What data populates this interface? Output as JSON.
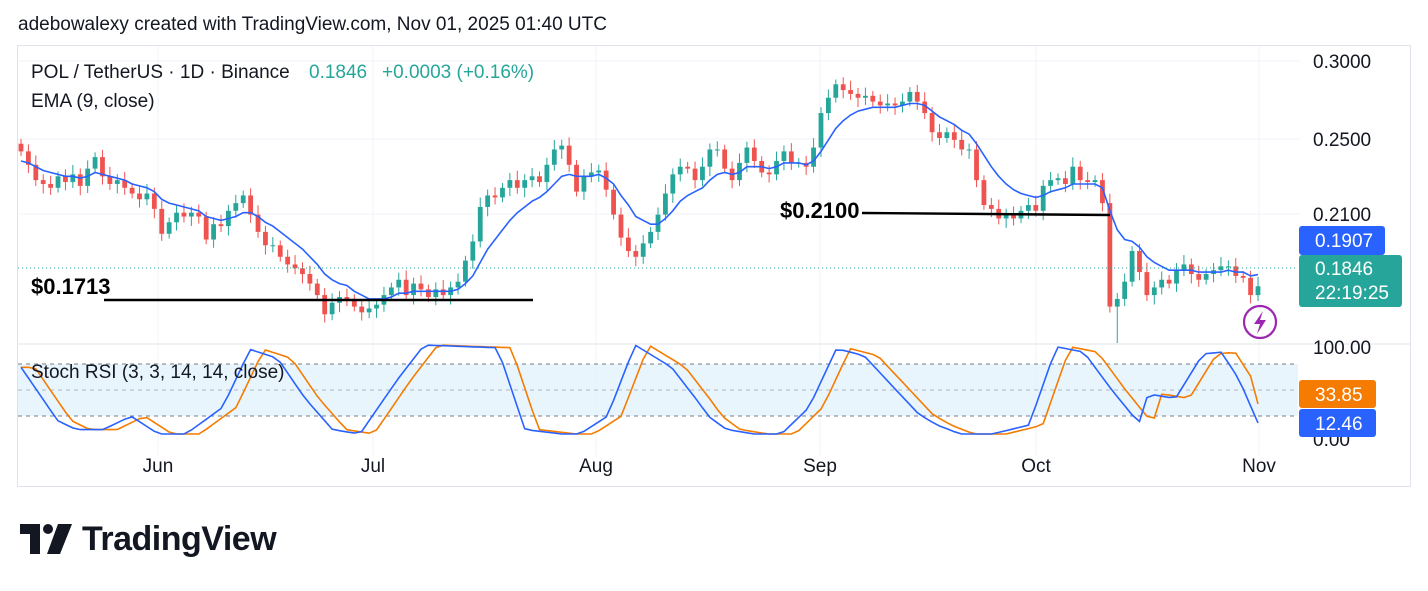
{
  "header": {
    "attribution": "adebowalexy created with TradingView.com, Nov 01, 2025 01:40 UTC"
  },
  "symbol": {
    "name": "POL / TetherUS · 1D · Binance",
    "price": "0.1846",
    "change": "+0.0003 (+0.16%)"
  },
  "indicators": {
    "ema": "EMA (9, close)",
    "stoch": "Stoch RSI (3, 3, 14, 14, close)"
  },
  "annotations": {
    "support": "$0.1713",
    "resistance": "$0.2100"
  },
  "price_axis": {
    "ticks": [
      "0.3000",
      "0.2500",
      "0.2100"
    ],
    "ema_value": "0.1907",
    "last_price": "0.1846",
    "countdown": "22:19:25"
  },
  "stoch_axis": {
    "top_label": "100.00",
    "bottom_label": "0.00",
    "k_value": "33.85",
    "d_value": "12.46"
  },
  "time_axis": [
    "Jun",
    "Jul",
    "Aug",
    "Sep",
    "Oct",
    "Nov"
  ],
  "brand": {
    "name": "TradingView"
  },
  "colors": {
    "up": "#26a69a",
    "down": "#ef5350",
    "ema": "#2962ff",
    "stoch_k": "#2962ff",
    "stoch_d": "#f57c00",
    "band": "#e3f2fd"
  },
  "chart_data": {
    "type": "candlestick",
    "symbol": "POL / TetherUS",
    "ylim": [
      0.155,
      0.31
    ],
    "x": [
      "Jun",
      "Jul",
      "Aug",
      "Sep",
      "Oct",
      "Nov"
    ],
    "candles_close": [
      0.255,
      0.248,
      0.24,
      0.238,
      0.236,
      0.242,
      0.239,
      0.243,
      0.237,
      0.246,
      0.252,
      0.242,
      0.238,
      0.24,
      0.236,
      0.233,
      0.23,
      0.233,
      0.225,
      0.212,
      0.218,
      0.223,
      0.221,
      0.223,
      0.221,
      0.209,
      0.217,
      0.216,
      0.224,
      0.228,
      0.232,
      0.222,
      0.213,
      0.206,
      0.206,
      0.2,
      0.196,
      0.194,
      0.191,
      0.186,
      0.18,
      0.17,
      0.176,
      0.179,
      0.178,
      0.174,
      0.171,
      0.173,
      0.175,
      0.18,
      0.184,
      0.188,
      0.18,
      0.186,
      0.183,
      0.179,
      0.183,
      0.18,
      0.184,
      0.187,
      0.198,
      0.208,
      0.226,
      0.232,
      0.231,
      0.236,
      0.24,
      0.236,
      0.24,
      0.242,
      0.239,
      0.248,
      0.256,
      0.258,
      0.248,
      0.234,
      0.242,
      0.244,
      0.245,
      0.235,
      0.222,
      0.21,
      0.203,
      0.2,
      0.207,
      0.213,
      0.222,
      0.233,
      0.243,
      0.247,
      0.246,
      0.24,
      0.247,
      0.256,
      0.256,
      0.246,
      0.24,
      0.249,
      0.257,
      0.25,
      0.244,
      0.243,
      0.25,
      0.255,
      0.249,
      0.249,
      0.247,
      0.257,
      0.275,
      0.283,
      0.29,
      0.287,
      0.285,
      0.283,
      0.284,
      0.281,
      0.279,
      0.28,
      0.279,
      0.281,
      0.286,
      0.281,
      0.275,
      0.265,
      0.262,
      0.265,
      0.261,
      0.256,
      0.256,
      0.24,
      0.227,
      0.225,
      0.22,
      0.222,
      0.22,
      0.224,
      0.227,
      0.224,
      0.237,
      0.24,
      0.241,
      0.238,
      0.247,
      0.24,
      0.239,
      0.24,
      0.228,
      0.174,
      0.178,
      0.187,
      0.203,
      0.192,
      0.18,
      0.184,
      0.188,
      0.186,
      0.193,
      0.196,
      0.191,
      0.188,
      0.191,
      0.193,
      0.195,
      0.195,
      0.19,
      0.189,
      0.18,
      0.1846
    ],
    "ema_close": [
      0.25,
      0.249,
      0.247,
      0.245,
      0.244,
      0.243,
      0.242,
      0.242,
      0.241,
      0.242,
      0.244,
      0.243,
      0.242,
      0.241,
      0.24,
      0.238,
      0.237,
      0.236,
      0.234,
      0.23,
      0.228,
      0.227,
      0.226,
      0.225,
      0.224,
      0.221,
      0.22,
      0.219,
      0.22,
      0.221,
      0.223,
      0.223,
      0.221,
      0.218,
      0.216,
      0.213,
      0.21,
      0.207,
      0.204,
      0.2,
      0.196,
      0.191,
      0.188,
      0.186,
      0.185,
      0.182,
      0.18,
      0.178,
      0.178,
      0.178,
      0.179,
      0.181,
      0.181,
      0.182,
      0.182,
      0.182,
      0.182,
      0.182,
      0.182,
      0.183,
      0.186,
      0.19,
      0.197,
      0.204,
      0.209,
      0.214,
      0.219,
      0.223,
      0.226,
      0.229,
      0.231,
      0.234,
      0.238,
      0.242,
      0.243,
      0.242,
      0.242,
      0.242,
      0.243,
      0.241,
      0.238,
      0.232,
      0.227,
      0.221,
      0.219,
      0.217,
      0.217,
      0.22,
      0.224,
      0.229,
      0.232,
      0.234,
      0.236,
      0.24,
      0.243,
      0.244,
      0.243,
      0.244,
      0.247,
      0.247,
      0.247,
      0.246,
      0.247,
      0.249,
      0.249,
      0.249,
      0.248,
      0.25,
      0.255,
      0.261,
      0.267,
      0.271,
      0.274,
      0.276,
      0.277,
      0.278,
      0.278,
      0.278,
      0.278,
      0.279,
      0.28,
      0.28,
      0.279,
      0.276,
      0.273,
      0.271,
      0.269,
      0.266,
      0.264,
      0.259,
      0.253,
      0.247,
      0.242,
      0.238,
      0.235,
      0.233,
      0.232,
      0.231,
      0.232,
      0.234,
      0.235,
      0.236,
      0.238,
      0.238,
      0.238,
      0.238,
      0.236,
      0.224,
      0.214,
      0.209,
      0.208,
      0.205,
      0.2,
      0.197,
      0.195,
      0.193,
      0.193,
      0.193,
      0.193,
      0.192,
      0.192,
      0.192,
      0.192,
      0.193,
      0.192,
      0.192,
      0.19,
      0.1907
    ],
    "stoch_k": [
      33.85
    ],
    "stoch_d": [
      12.46
    ],
    "levels": {
      "support": 0.1713,
      "resistance": 0.21
    }
  }
}
